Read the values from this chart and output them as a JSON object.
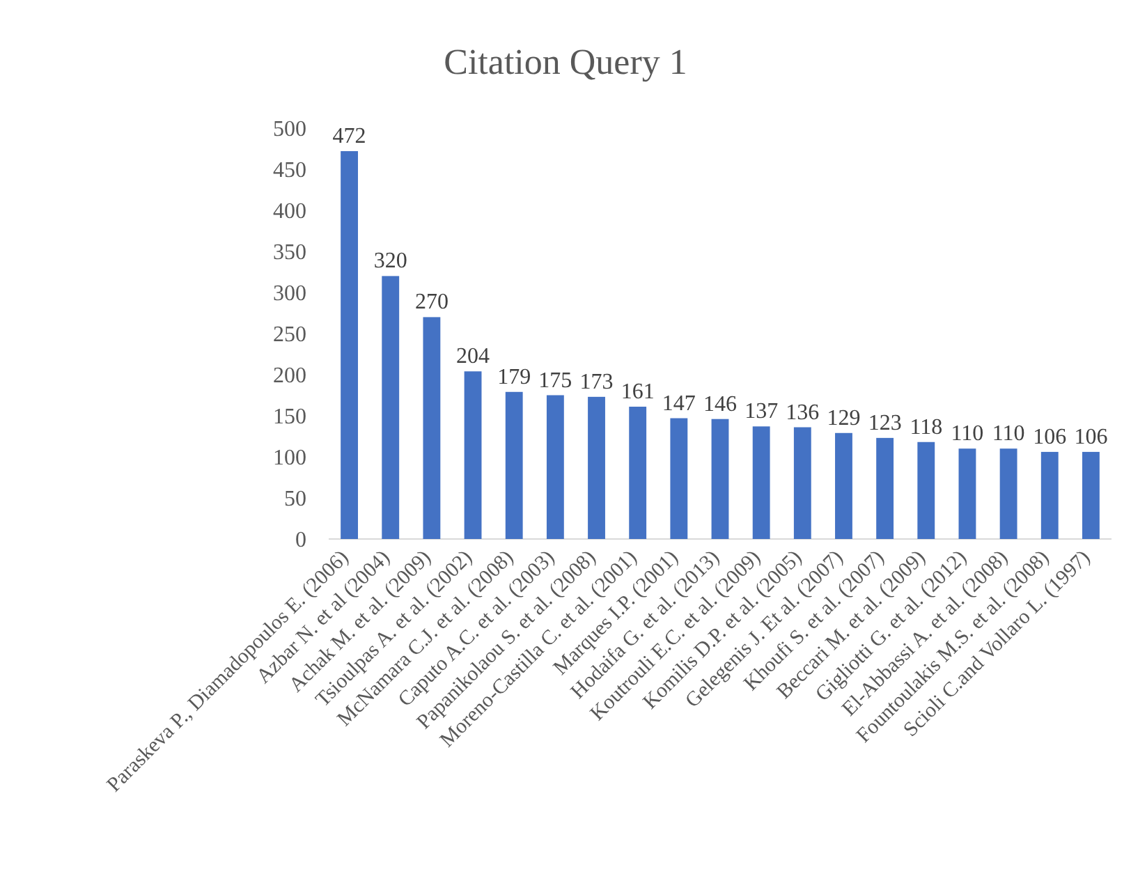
{
  "chart_data": {
    "type": "bar",
    "title": "Citation Query 1",
    "categories": [
      "Paraskeva P., Diamadopoulos E. (2006)",
      "Azbar N. et al (2004)",
      "Achak M. et al. (2009)",
      "Tsioulpas A. et al. (2002)",
      "McNamara C.J. et al. (2008)",
      "Caputo A.C. et al. (2003)",
      "Papanikolaou S. et al. (2008)",
      "Moreno-Castilla C. et al. (2001)",
      "Marques I.P. (2001)",
      "Hodaifa G. et al. (2013)",
      "Koutrouli E.C. et al. (2009)",
      "Komilis D.P. et al. (2005)",
      "Gelegenis J. Et al. (2007)",
      "Khoufi S. et al. (2007)",
      "Beccari M. et al. (2009)",
      "Gigliotti G. et al. (2012)",
      "El-Abbassi A. et al. (2008)",
      "Fountoulakis M.S. et al. (2008)",
      "Scioli C.and Vollaro L. (1997)"
    ],
    "values": [
      472,
      320,
      270,
      204,
      179,
      175,
      173,
      161,
      147,
      146,
      137,
      136,
      129,
      123,
      118,
      110,
      110,
      106,
      106
    ],
    "color": "#4472c4",
    "ylim": [
      0,
      500
    ],
    "yticks": [
      0,
      50,
      100,
      150,
      200,
      250,
      300,
      350,
      400,
      450,
      500
    ],
    "grid": false,
    "data_labels": true
  }
}
